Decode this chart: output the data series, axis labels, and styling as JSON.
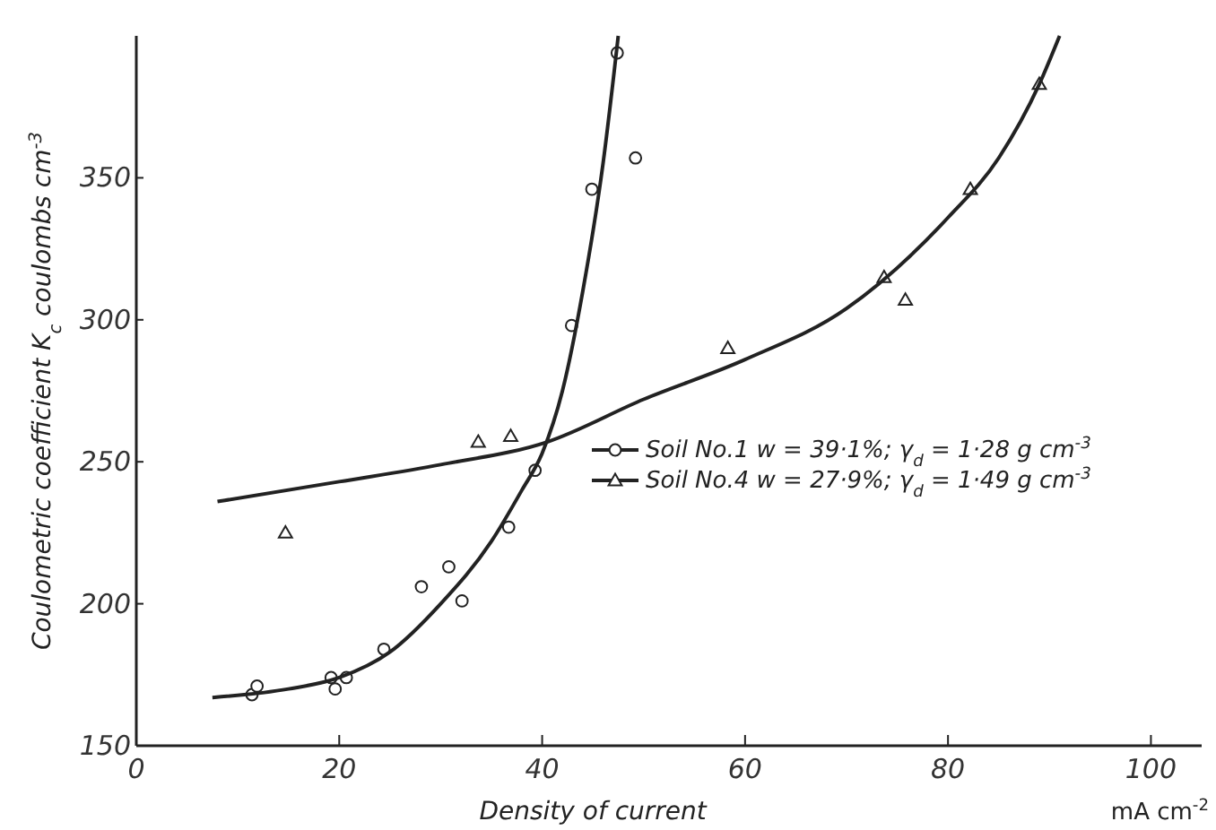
{
  "chart_data": {
    "type": "scatter",
    "xlabel": "Density of current",
    "ylabel": "Coulometric coefficient K$_{c}$  coulombs cm$^{-3}$",
    "annotations": [
      "mA cm$^{-2}$"
    ],
    "xlim": [
      0,
      105
    ],
    "ylim": [
      150,
      400
    ],
    "xticks": [
      0,
      20,
      40,
      60,
      80,
      100
    ],
    "yticks": [
      150,
      200,
      250,
      300,
      350
    ],
    "grid": false,
    "legend": "right",
    "series": [
      {
        "name": "Soil No.1 w = 39·1%; γ$_{d}$ = 1·28 g cm$^{-3}$",
        "marker": "circle",
        "color": "#222222",
        "x": [
          11.4,
          11.9,
          19.2,
          19.6,
          20.7,
          24.4,
          28.1,
          30.8,
          32.1,
          36.7,
          39.3,
          42.9,
          44.9,
          47.4,
          49.2
        ],
        "values": [
          168,
          171,
          174,
          170,
          174,
          184,
          206,
          213,
          201,
          227,
          247,
          298,
          346,
          394,
          357
        ]
      },
      {
        "name": "Soil No.4 w = 27·9%; γ$_{d}$ = 1·49 g cm$^{-3}$",
        "marker": "triangle",
        "color": "#222222",
        "x": [
          14.7,
          33.7,
          36.9,
          58.3,
          73.7,
          75.8,
          82.2,
          89.0
        ],
        "values": [
          225,
          257,
          259,
          290,
          315,
          307,
          346,
          383
        ]
      },
      {
        "type": "line",
        "color": "#222222",
        "x": [
          7.5,
          15,
          20,
          25,
          30,
          35,
          38,
          40,
          42,
          44,
          46,
          47.5
        ],
        "values": [
          167,
          170,
          174,
          183,
          200,
          222,
          240,
          253,
          275,
          310,
          355,
          400
        ]
      },
      {
        "type": "line",
        "color": "#222222",
        "x": [
          8,
          20,
          30,
          40.5,
          50,
          60,
          70,
          80,
          85,
          89,
          91
        ],
        "values": [
          236,
          243,
          249,
          257,
          272,
          286,
          304,
          336,
          357,
          383,
          400
        ]
      }
    ]
  }
}
